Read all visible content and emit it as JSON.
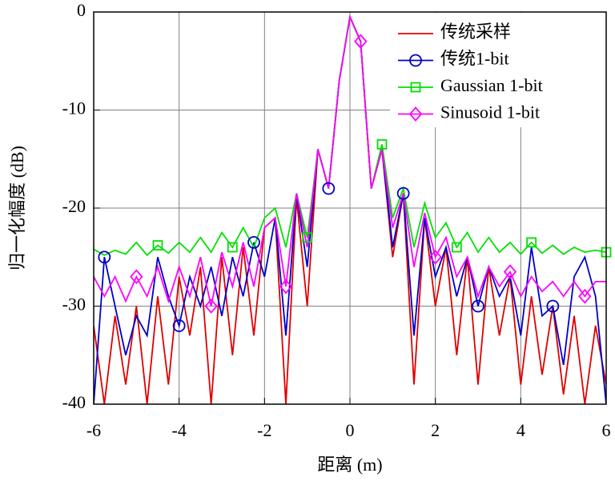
{
  "chart_data": {
    "type": "line",
    "xlabel": "距离 (m)",
    "ylabel": "归一化幅度 (dB)",
    "xlim": [
      -6,
      6
    ],
    "ylim": [
      -40,
      0
    ],
    "xticks": [
      -6,
      -4,
      -2,
      0,
      2,
      4,
      6
    ],
    "yticks": [
      -40,
      -30,
      -20,
      -10,
      0
    ],
    "grid": true,
    "legend": "upper right",
    "x": [
      -6,
      -5.75,
      -5.5,
      -5.25,
      -5,
      -4.75,
      -4.5,
      -4.25,
      -4,
      -3.75,
      -3.5,
      -3.25,
      -3,
      -2.75,
      -2.5,
      -2.25,
      -2,
      -1.75,
      -1.5,
      -1.25,
      -1,
      -0.75,
      -0.5,
      -0.25,
      0,
      0.25,
      0.5,
      0.75,
      1,
      1.25,
      1.5,
      1.75,
      2,
      2.25,
      2.5,
      2.75,
      3,
      3.25,
      3.5,
      3.75,
      4,
      4.25,
      4.5,
      4.75,
      5,
      5.25,
      5.5,
      5.75,
      6
    ],
    "series": [
      {
        "name": "传统采样",
        "color": "#e00000",
        "marker": "none",
        "values": [
          -32,
          -40,
          -31,
          -38,
          -30,
          -40,
          -29,
          -38,
          -27,
          -33,
          -26,
          -40,
          -25,
          -35,
          -24,
          -33,
          -22,
          -21,
          -40,
          -19,
          -30,
          -14,
          -18,
          -7,
          -0.5,
          -3,
          -18,
          -14,
          -25,
          -18.5,
          -38,
          -21,
          -30,
          -24,
          -35,
          -25,
          -38,
          -26,
          -33,
          -27,
          -38,
          -29,
          -37,
          -30,
          -39,
          -31,
          -40,
          -32,
          -38
        ]
      },
      {
        "name": "传统1-bit",
        "color": "#0000c8",
        "marker": "circle",
        "values": [
          -40,
          -25,
          -30,
          -35,
          -31,
          -33,
          -25,
          -29,
          -32,
          -27,
          -30,
          -26,
          -31,
          -25,
          -29,
          -23.5,
          -27,
          -21,
          -33,
          -18.5,
          -26,
          -14,
          -18,
          -7,
          -0.5,
          -3,
          -18,
          -14,
          -24,
          -18.5,
          -33,
          -21,
          -27,
          -24,
          -29,
          -25,
          -30,
          -26,
          -29,
          -27,
          -33,
          -24,
          -31,
          -30,
          -36,
          -27,
          -25,
          -29,
          -40
        ]
      },
      {
        "name": "Gaussian 1-bit",
        "color": "#00e000",
        "marker": "square",
        "values": [
          -24.2,
          -24.8,
          -24.3,
          -24.7,
          -23.5,
          -24.8,
          -23.8,
          -24.6,
          -23.5,
          -24.5,
          -23,
          -24.5,
          -22.5,
          -24,
          -22,
          -24,
          -21,
          -20,
          -24,
          -18.5,
          -23,
          -14,
          -18,
          -7,
          -0.5,
          -3,
          -18,
          -13.5,
          -21,
          -18,
          -24,
          -19.5,
          -23,
          -21.5,
          -24,
          -22.5,
          -24.5,
          -23,
          -24.5,
          -23.5,
          -24.7,
          -23.5,
          -24.6,
          -23.8,
          -24.7,
          -24,
          -24.5,
          -24.3,
          -24.5
        ]
      },
      {
        "name": "Sinusoid 1-bit",
        "color": "#ff00ff",
        "marker": "diamond",
        "values": [
          -27,
          -29,
          -27,
          -29.5,
          -27,
          -29,
          -26,
          -29.5,
          -26,
          -29,
          -25,
          -30,
          -24.5,
          -28,
          -23.5,
          -28,
          -22,
          -21,
          -28,
          -18.5,
          -24,
          -14,
          -18,
          -7,
          -0.5,
          -3,
          -18,
          -14,
          -22,
          -18.5,
          -26,
          -20.5,
          -25,
          -23,
          -27,
          -25,
          -29,
          -26,
          -28,
          -26.5,
          -29,
          -27,
          -28.5,
          -27.5,
          -29,
          -27.5,
          -29,
          -27.5,
          -27.5
        ]
      }
    ]
  }
}
